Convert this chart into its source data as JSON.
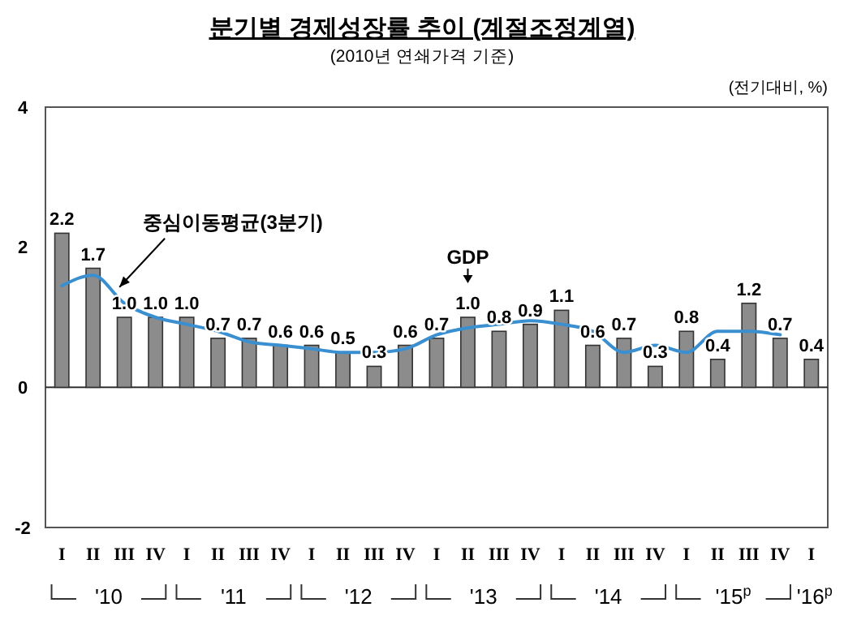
{
  "chart_data": {
    "type": "bar",
    "title": "분기별 경제성장률 추이 (계절조정계열)",
    "subtitle": "(2010년 연쇄가격 기준)",
    "ylabel": "(전기대비, %)",
    "categories": [
      "I",
      "II",
      "III",
      "IV",
      "I",
      "II",
      "III",
      "IV",
      "I",
      "II",
      "III",
      "IV",
      "I",
      "II",
      "III",
      "IV",
      "I",
      "II",
      "III",
      "IV",
      "I",
      "II",
      "III",
      "IV",
      "I"
    ],
    "series": [
      {
        "name": "GDP",
        "color": "#8c8c8c",
        "values": [
          2.2,
          1.7,
          1.0,
          1.0,
          1.0,
          0.7,
          0.7,
          0.6,
          0.6,
          0.5,
          0.3,
          0.6,
          0.7,
          1.0,
          0.8,
          0.9,
          1.1,
          0.6,
          0.7,
          0.3,
          0.8,
          0.4,
          1.2,
          0.7,
          0.4
        ],
        "value_labels": [
          "2.2",
          "1.7",
          "1.0",
          "1.0",
          "1.0",
          "0.7",
          "0.7",
          "0.6",
          "0.6",
          "0.5",
          "0.3",
          "0.6",
          "0.7",
          "1.0",
          "0.8",
          "0.9",
          "1.1",
          "0.6",
          "0.7",
          "0.3",
          "0.8",
          "0.4",
          "1.2",
          "0.7",
          "0.4"
        ]
      },
      {
        "name": "중심이동평균(3분기)",
        "type": "line",
        "color": "#3a8fd0",
        "values": [
          1.45,
          1.6,
          1.2,
          1.0,
          0.9,
          0.8,
          0.65,
          0.6,
          0.55,
          0.5,
          0.5,
          0.55,
          0.75,
          0.85,
          0.9,
          0.95,
          0.9,
          0.8,
          0.5,
          0.6,
          0.5,
          0.8,
          0.8,
          0.75,
          null
        ]
      }
    ],
    "ylim": [
      -2,
      4
    ],
    "yticks": [
      -2,
      0,
      2,
      4
    ],
    "marker": "none",
    "line_style": "solid",
    "annotations": [
      "'10",
      "'11",
      "'12",
      "'13",
      "'14",
      "'15$^{p}$",
      "'16$^{p}$"
    ]
  }
}
